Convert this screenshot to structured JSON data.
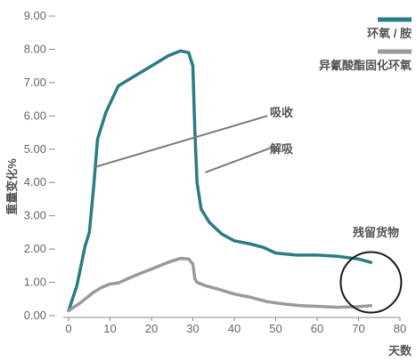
{
  "chart_data": {
    "type": "line",
    "title": "",
    "xlabel": "天数",
    "ylabel": "重量变化%",
    "xlim": [
      0,
      80
    ],
    "ylim": [
      0,
      9
    ],
    "x_ticks": [
      0,
      10,
      20,
      30,
      40,
      50,
      60,
      70,
      80
    ],
    "x_tick_labels": [
      "0",
      "10",
      "20",
      "30",
      "40",
      "50",
      "60",
      "70",
      "80"
    ],
    "y_ticks": [
      0,
      1,
      2,
      3,
      4,
      5,
      6,
      7,
      8,
      9
    ],
    "y_tick_labels": [
      "0.00",
      "1.00",
      "2.00",
      "3.00",
      "4.00",
      "5.00",
      "6.00",
      "7.00",
      "8.00",
      "9.00"
    ],
    "grid": false,
    "legend_position": "top-right",
    "series": [
      {
        "name": "环氧 / 胺",
        "color": "#2b7c85",
        "x": [
          0,
          2,
          4,
          5,
          6,
          7,
          9,
          12,
          16,
          20,
          24,
          27,
          29,
          30,
          30.5,
          31,
          32,
          34,
          37,
          40,
          44,
          47,
          50,
          55,
          60,
          65,
          70,
          73
        ],
        "y": [
          0.15,
          0.9,
          2.1,
          2.5,
          3.8,
          5.3,
          6.1,
          6.9,
          7.2,
          7.5,
          7.8,
          7.95,
          7.9,
          7.5,
          5.5,
          4.0,
          3.2,
          2.8,
          2.45,
          2.25,
          2.15,
          2.05,
          1.88,
          1.82,
          1.82,
          1.78,
          1.7,
          1.6
        ]
      },
      {
        "name": "异氰酸酯固化环氧",
        "color": "#9a9a9a",
        "x": [
          0,
          3,
          6,
          8,
          10,
          12,
          15,
          18,
          21,
          24,
          27,
          29,
          30,
          30.5,
          31,
          33,
          36,
          40,
          44,
          48,
          52,
          56,
          60,
          65,
          70,
          73
        ],
        "y": [
          0.15,
          0.4,
          0.7,
          0.85,
          0.95,
          0.98,
          1.15,
          1.3,
          1.45,
          1.6,
          1.72,
          1.7,
          1.55,
          1.1,
          1.0,
          0.9,
          0.8,
          0.65,
          0.55,
          0.42,
          0.35,
          0.3,
          0.28,
          0.25,
          0.27,
          0.3
        ]
      }
    ],
    "annotations": [
      {
        "text": "吸收",
        "line": {
          "x": [
            6,
            48
          ],
          "y": [
            4.45,
            6.0
          ]
        }
      },
      {
        "text": "解吸",
        "line": {
          "x": [
            33,
            49
          ],
          "y": [
            4.3,
            5.05
          ]
        }
      },
      {
        "text": "残留货物",
        "circle": {
          "cx": 73,
          "cy": 1.0
        }
      }
    ]
  }
}
